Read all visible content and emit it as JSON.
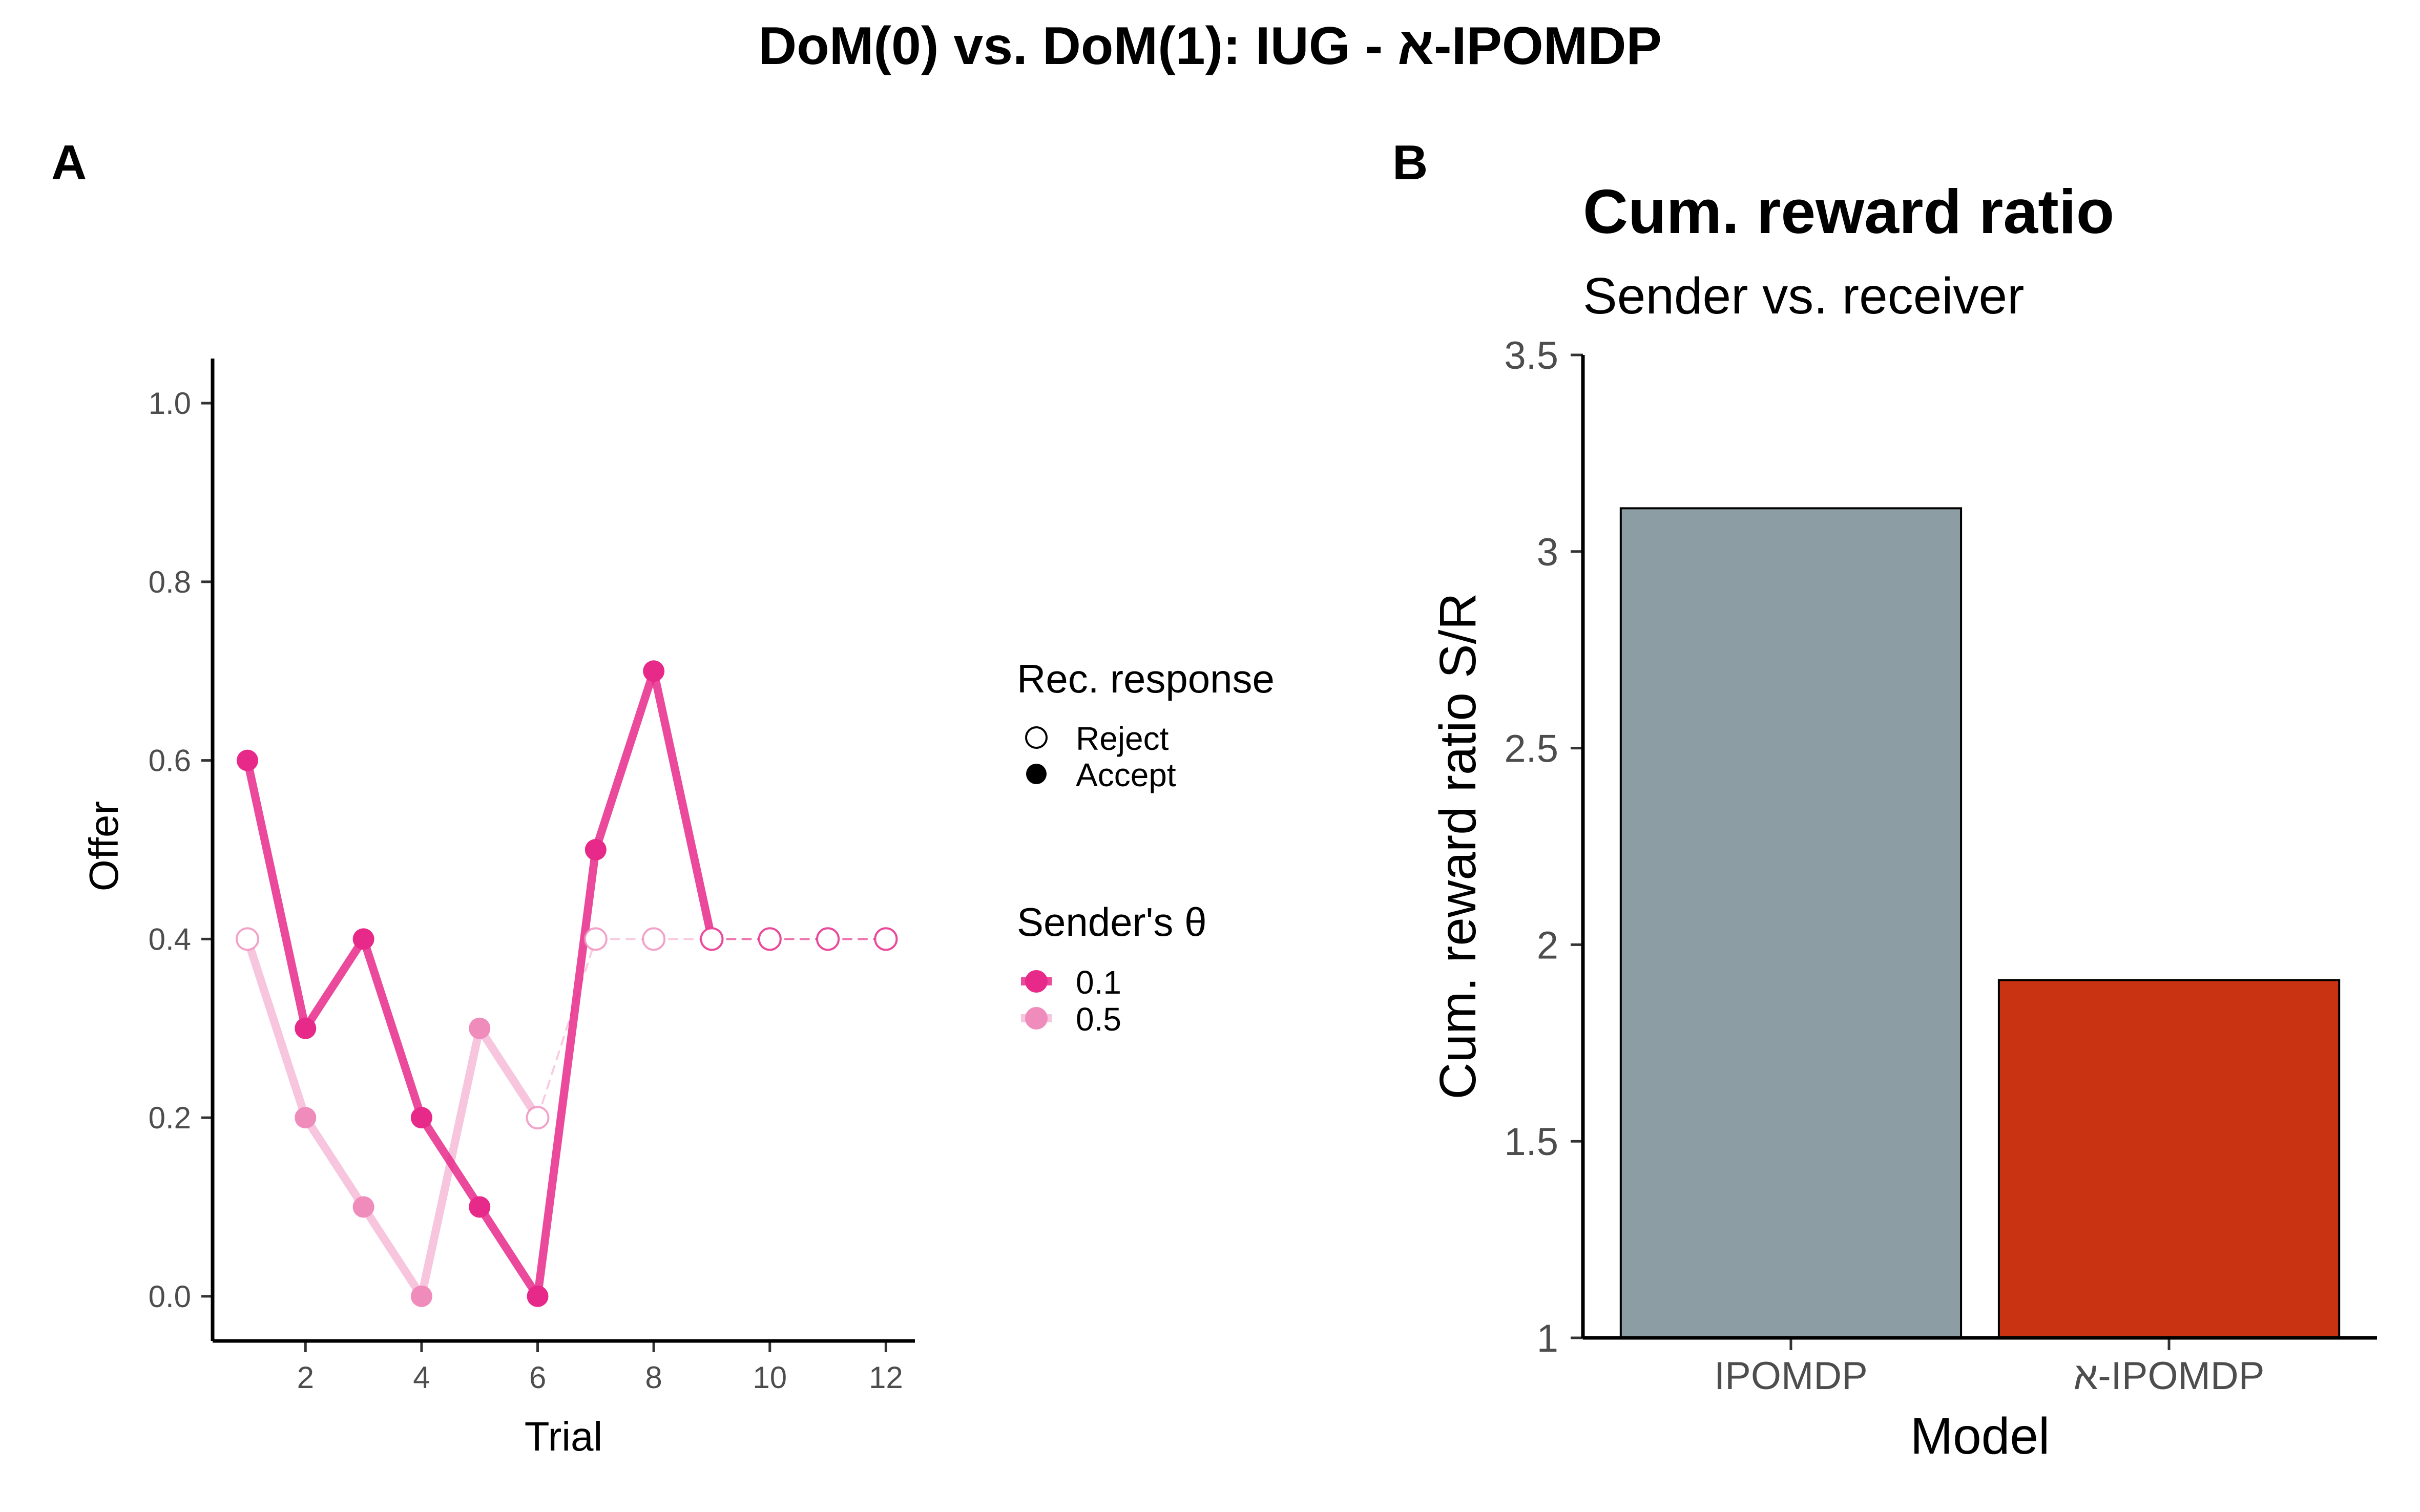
{
  "figure_title": "DoM(0) vs. DoM(1): IUG - א-IPOMDP",
  "chart_data": [
    {
      "panel": "A",
      "type": "line",
      "title": "",
      "xlabel": "Trial",
      "ylabel": "Offer",
      "xlim": [
        0.4,
        12.5
      ],
      "ylim": [
        -0.05,
        1.05
      ],
      "xticks": [
        "2",
        "4",
        "6",
        "8",
        "10",
        "12"
      ],
      "yticks": [
        "0.0",
        "0.2",
        "0.4",
        "0.6",
        "0.8",
        "1.0"
      ],
      "legend_response": {
        "title": "Rec. response",
        "entries": [
          "Reject",
          "Accept"
        ]
      },
      "legend_theta": {
        "title": "Sender's θ",
        "entries": [
          "0.1",
          "0.5"
        ]
      },
      "series": [
        {
          "name": "0.1",
          "color": "#e7298a",
          "points": [
            {
              "x": 1,
              "y": 0.6,
              "response": "Accept"
            },
            {
              "x": 2,
              "y": 0.3,
              "response": "Accept"
            },
            {
              "x": 3,
              "y": 0.4,
              "response": "Accept"
            },
            {
              "x": 4,
              "y": 0.2,
              "response": "Accept"
            },
            {
              "x": 5,
              "y": 0.1,
              "response": "Accept"
            },
            {
              "x": 6,
              "y": 0.0,
              "response": "Accept"
            },
            {
              "x": 7,
              "y": 0.5,
              "response": "Accept"
            },
            {
              "x": 8,
              "y": 0.7,
              "response": "Accept"
            },
            {
              "x": 9,
              "y": 0.4,
              "response": "Reject"
            },
            {
              "x": 10,
              "y": 0.4,
              "response": "Reject"
            },
            {
              "x": 11,
              "y": 0.4,
              "response": "Reject"
            },
            {
              "x": 12,
              "y": 0.4,
              "response": "Reject"
            }
          ]
        },
        {
          "name": "0.5",
          "color": "#f08cbc",
          "points": [
            {
              "x": 1,
              "y": 0.4,
              "response": "Reject"
            },
            {
              "x": 2,
              "y": 0.2,
              "response": "Accept"
            },
            {
              "x": 3,
              "y": 0.1,
              "response": "Accept"
            },
            {
              "x": 4,
              "y": 0.0,
              "response": "Accept"
            },
            {
              "x": 5,
              "y": 0.3,
              "response": "Accept"
            },
            {
              "x": 6,
              "y": 0.2,
              "response": "Reject"
            },
            {
              "x": 7,
              "y": 0.4,
              "response": "Reject"
            },
            {
              "x": 8,
              "y": 0.4,
              "response": "Reject"
            },
            {
              "x": 9,
              "y": 0.4,
              "response": "Reject"
            },
            {
              "x": 10,
              "y": 0.4,
              "response": "Reject"
            },
            {
              "x": 11,
              "y": 0.4,
              "response": "Reject"
            },
            {
              "x": 12,
              "y": 0.4,
              "response": "Reject"
            }
          ]
        }
      ]
    },
    {
      "panel": "B",
      "type": "bar",
      "title": "Cum. reward ratio",
      "subtitle": "Sender vs. receiver",
      "xlabel": "Model",
      "ylabel": "Cum. reward ratio S/R",
      "ylim": [
        1,
        3.5
      ],
      "yticks": [
        "1",
        "1.5",
        "2",
        "2.5",
        "3",
        "3.5"
      ],
      "categories": [
        "IPOMDP",
        "א-IPOMDP"
      ],
      "values": [
        3.11,
        1.91
      ],
      "colors": [
        "#8c9ea4",
        "#c93312"
      ]
    }
  ]
}
